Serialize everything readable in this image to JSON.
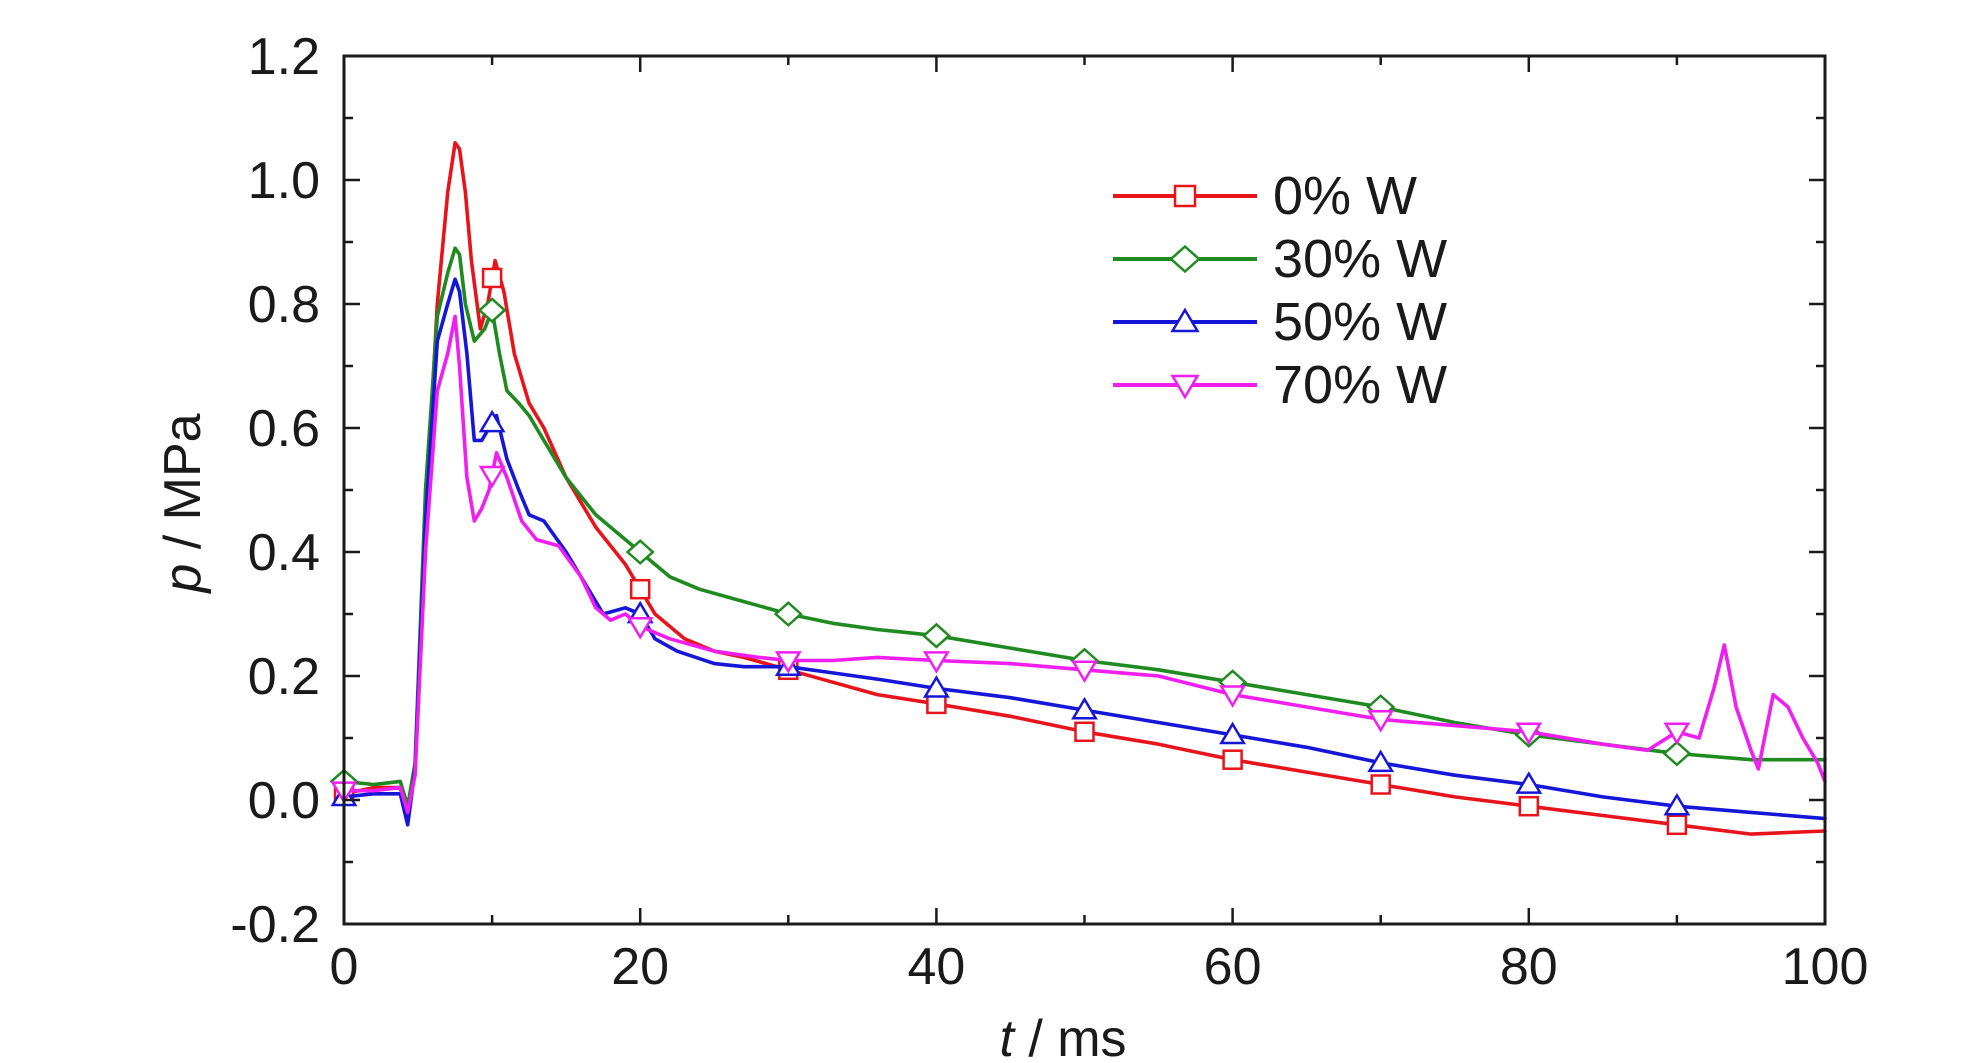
{
  "chart_data": {
    "type": "line",
    "xlabel_var": "t",
    "xlabel_unit": " / ms",
    "ylabel_var": "p",
    "ylabel_unit": " / MPa",
    "xlim": [
      0,
      100
    ],
    "ylim": [
      -0.2,
      1.2
    ],
    "x_ticks": [
      0,
      20,
      40,
      60,
      80,
      100
    ],
    "y_ticks": [
      -0.2,
      0.0,
      0.2,
      0.4,
      0.6,
      0.8,
      1.0,
      1.2
    ],
    "x_tick_labels": [
      "0",
      "20",
      "40",
      "60",
      "80",
      "100"
    ],
    "y_tick_labels": [
      "-0.2",
      "0.0",
      "0.2",
      "0.4",
      "0.6",
      "0.8",
      "1.0",
      "1.2"
    ],
    "grid": false,
    "legend_position": "top-right",
    "series": [
      {
        "name": "0% W",
        "color": "#e8141b",
        "marker": "square",
        "x": [
          0,
          2,
          3.8,
          4.3,
          4.8,
          5.5,
          6.3,
          7,
          7.5,
          7.8,
          8.2,
          8.6,
          9.2,
          9.7,
          10.2,
          10.8,
          11.5,
          12.5,
          13.5,
          15,
          17,
          19,
          20,
          21,
          23,
          25,
          27,
          30,
          33,
          36,
          40,
          45,
          50,
          55,
          60,
          65,
          70,
          75,
          80,
          85,
          90,
          95,
          100
        ],
        "y": [
          0.01,
          0.02,
          0.02,
          -0.03,
          0.05,
          0.45,
          0.8,
          0.98,
          1.06,
          1.05,
          0.98,
          0.87,
          0.76,
          0.8,
          0.87,
          0.82,
          0.72,
          0.64,
          0.6,
          0.52,
          0.44,
          0.38,
          0.34,
          0.3,
          0.26,
          0.24,
          0.23,
          0.21,
          0.19,
          0.17,
          0.155,
          0.135,
          0.11,
          0.09,
          0.065,
          0.045,
          0.025,
          0.005,
          -0.01,
          -0.025,
          -0.04,
          -0.055,
          -0.05
        ]
      },
      {
        "name": "30% W",
        "color": "#1f8a1f",
        "marker": "diamond",
        "x": [
          0,
          2,
          3.8,
          4.3,
          4.8,
          5.5,
          6.3,
          7,
          7.5,
          7.8,
          8.2,
          8.8,
          9.5,
          10,
          10.5,
          11,
          11.8,
          12.5,
          13.5,
          15,
          17,
          19,
          20,
          22,
          24,
          27,
          30,
          33,
          36,
          40,
          45,
          50,
          55,
          60,
          65,
          70,
          75,
          80,
          85,
          90,
          95,
          100
        ],
        "y": [
          0.03,
          0.025,
          0.03,
          -0.01,
          0.06,
          0.5,
          0.78,
          0.85,
          0.89,
          0.88,
          0.8,
          0.74,
          0.76,
          0.79,
          0.72,
          0.66,
          0.64,
          0.62,
          0.58,
          0.52,
          0.46,
          0.42,
          0.4,
          0.36,
          0.34,
          0.32,
          0.3,
          0.285,
          0.275,
          0.265,
          0.245,
          0.225,
          0.21,
          0.19,
          0.17,
          0.15,
          0.125,
          0.105,
          0.09,
          0.075,
          0.065,
          0.065
        ]
      },
      {
        "name": "50% W",
        "color": "#1616d8",
        "marker": "triangle-up",
        "x": [
          0,
          2,
          3.8,
          4.3,
          4.8,
          5.5,
          6.3,
          7,
          7.5,
          7.8,
          8.3,
          8.8,
          9.3,
          9.8,
          10.3,
          11,
          11.8,
          12.5,
          13.5,
          15,
          16.5,
          17.5,
          19,
          20,
          21,
          22.5,
          25,
          27,
          30,
          33,
          36,
          40,
          45,
          50,
          55,
          60,
          65,
          70,
          75,
          80,
          85,
          90,
          95,
          100
        ],
        "y": [
          0.005,
          0.01,
          0.01,
          -0.04,
          0.05,
          0.45,
          0.74,
          0.8,
          0.84,
          0.82,
          0.72,
          0.58,
          0.58,
          0.6,
          0.62,
          0.55,
          0.5,
          0.46,
          0.45,
          0.4,
          0.34,
          0.3,
          0.31,
          0.3,
          0.26,
          0.24,
          0.22,
          0.215,
          0.215,
          0.205,
          0.195,
          0.18,
          0.165,
          0.145,
          0.125,
          0.105,
          0.085,
          0.06,
          0.04,
          0.025,
          0.005,
          -0.01,
          -0.02,
          -0.03
        ]
      },
      {
        "name": "70% W",
        "color": "#f01ef0",
        "marker": "triangle-down",
        "x": [
          0,
          2,
          3.8,
          4.3,
          4.8,
          5.5,
          6.3,
          7,
          7.5,
          7.8,
          8.3,
          8.8,
          9.3,
          9.8,
          10.3,
          11,
          12,
          13,
          14.5,
          16,
          17,
          18,
          19,
          20,
          22,
          25,
          28,
          30,
          33,
          36,
          40,
          45,
          50,
          55,
          60,
          65,
          70,
          75,
          80,
          85,
          88,
          90,
          91.5,
          92.5,
          93.2,
          94,
          95,
          95.5,
          96.5,
          97.5,
          98.5,
          99.5,
          100
        ],
        "y": [
          0.015,
          0.015,
          0.02,
          -0.02,
          0.04,
          0.4,
          0.66,
          0.72,
          0.78,
          0.7,
          0.52,
          0.45,
          0.47,
          0.5,
          0.56,
          0.52,
          0.45,
          0.42,
          0.41,
          0.36,
          0.31,
          0.29,
          0.3,
          0.28,
          0.26,
          0.24,
          0.23,
          0.225,
          0.225,
          0.23,
          0.225,
          0.22,
          0.21,
          0.2,
          0.17,
          0.15,
          0.13,
          0.12,
          0.11,
          0.09,
          0.08,
          0.11,
          0.1,
          0.18,
          0.25,
          0.15,
          0.08,
          0.05,
          0.17,
          0.15,
          0.1,
          0.06,
          0.03
        ]
      }
    ],
    "marker_x": {
      "0% W": [
        0,
        10,
        20,
        30,
        40,
        50,
        60,
        70,
        80,
        90
      ],
      "30% W": [
        0,
        10,
        20,
        30,
        40,
        50,
        60,
        70,
        80,
        90
      ],
      "50% W": [
        0,
        10,
        20,
        30,
        40,
        50,
        60,
        70,
        80,
        90
      ],
      "70% W": [
        0,
        10,
        20,
        30,
        40,
        50,
        60,
        70,
        80,
        90
      ]
    }
  }
}
